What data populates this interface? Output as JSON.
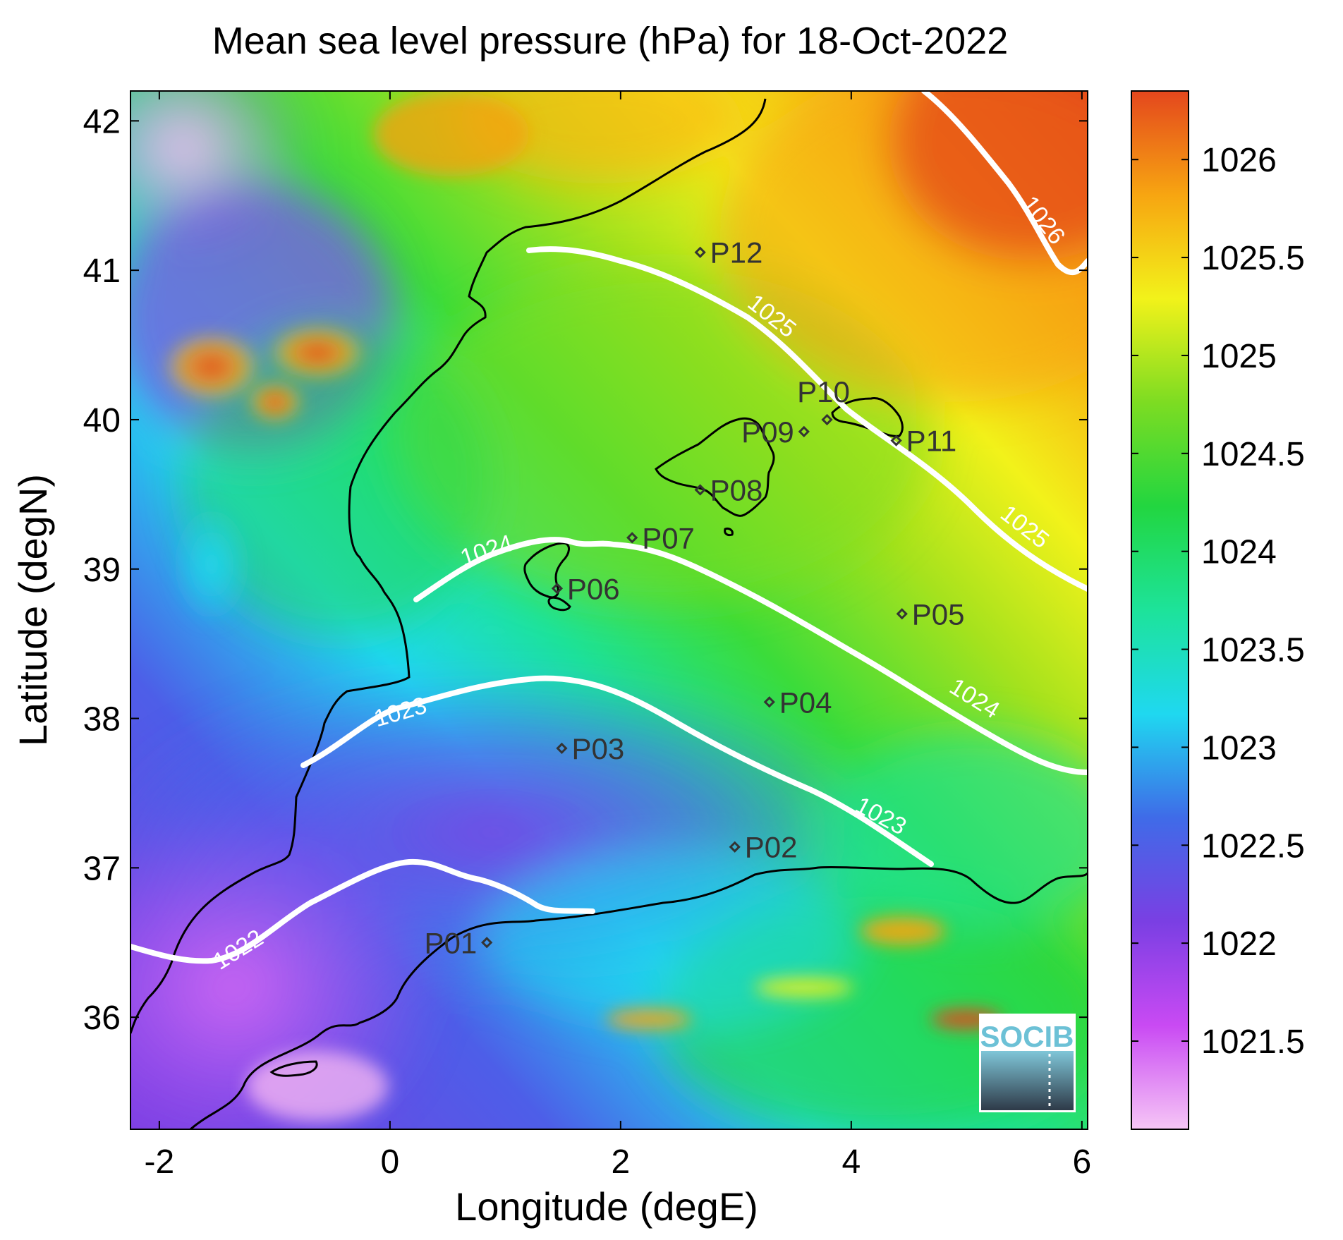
{
  "title": "Mean sea level pressure (hPa) for 18-Oct-2022",
  "xlabel": "Longitude (degE)",
  "ylabel": "Latitude (degN)",
  "x_ticks": [
    {
      "value": -2,
      "label": "-2"
    },
    {
      "value": 0,
      "label": "0"
    },
    {
      "value": 2,
      "label": "2"
    },
    {
      "value": 4,
      "label": "4"
    },
    {
      "value": 6,
      "label": "6"
    }
  ],
  "y_ticks": [
    {
      "value": 36,
      "label": "36"
    },
    {
      "value": 37,
      "label": "37"
    },
    {
      "value": 38,
      "label": "38"
    },
    {
      "value": 39,
      "label": "39"
    },
    {
      "value": 40,
      "label": "40"
    },
    {
      "value": 41,
      "label": "41"
    },
    {
      "value": 42,
      "label": "42"
    }
  ],
  "xlim": [
    -2.25,
    6.05
  ],
  "ylim": [
    35.25,
    42.2
  ],
  "colorbar": {
    "range": [
      1021.05,
      1026.35
    ],
    "ticks": [
      {
        "value": 1021.5,
        "label": "1021.5"
      },
      {
        "value": 1022,
        "label": "1022"
      },
      {
        "value": 1022.5,
        "label": "1022.5"
      },
      {
        "value": 1023,
        "label": "1023"
      },
      {
        "value": 1023.5,
        "label": "1023.5"
      },
      {
        "value": 1024,
        "label": "1024"
      },
      {
        "value": 1024.5,
        "label": "1024.5"
      },
      {
        "value": 1025,
        "label": "1025"
      },
      {
        "value": 1025.5,
        "label": "1025.5"
      },
      {
        "value": 1026,
        "label": "1026"
      }
    ],
    "colors": [
      "#f6c6f6",
      "#c94af3",
      "#7a3fe3",
      "#3f6be8",
      "#1fd8f0",
      "#1de39a",
      "#22d640",
      "#7ddc22",
      "#f2f21a",
      "#f7a511",
      "#e4471d"
    ]
  },
  "stations": [
    {
      "name": "P01",
      "lon": 0.84,
      "lat": 36.5,
      "anchor": "end"
    },
    {
      "name": "P02",
      "lon": 2.99,
      "lat": 37.14,
      "anchor": "start"
    },
    {
      "name": "P03",
      "lon": 1.49,
      "lat": 37.8,
      "anchor": "start"
    },
    {
      "name": "P04",
      "lon": 3.29,
      "lat": 38.11,
      "anchor": "start"
    },
    {
      "name": "P05",
      "lon": 4.44,
      "lat": 38.7,
      "anchor": "start"
    },
    {
      "name": "P06",
      "lon": 1.45,
      "lat": 38.87,
      "anchor": "start"
    },
    {
      "name": "P07",
      "lon": 2.1,
      "lat": 39.21,
      "anchor": "start"
    },
    {
      "name": "P08",
      "lon": 2.69,
      "lat": 39.53,
      "anchor": "start"
    },
    {
      "name": "P09",
      "lon": 3.59,
      "lat": 39.92,
      "anchor": "end"
    },
    {
      "name": "P10",
      "lon": 3.79,
      "lat": 40.0,
      "anchor": "middle-up"
    },
    {
      "name": "P11",
      "lon": 4.39,
      "lat": 39.86,
      "anchor": "start"
    },
    {
      "name": "P12",
      "lon": 2.69,
      "lat": 41.12,
      "anchor": "start"
    }
  ],
  "contours": [
    {
      "level": "1022",
      "label": "1022"
    },
    {
      "level": "1023",
      "label": "1023"
    },
    {
      "level": "1024",
      "label": "1024"
    },
    {
      "level": "1025",
      "label": "1025"
    },
    {
      "level": "1026",
      "label": "1026"
    }
  ],
  "logo": {
    "text": "SOCIB"
  }
}
